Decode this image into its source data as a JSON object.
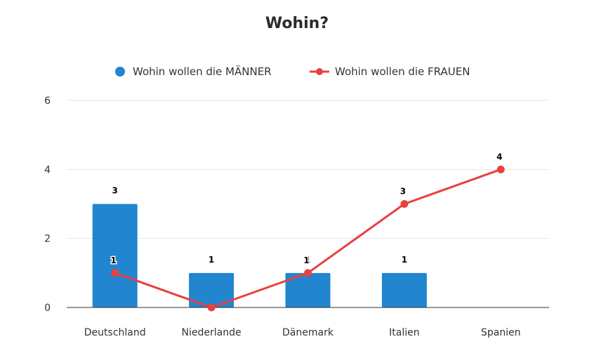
{
  "chart_data": {
    "type": "bar",
    "title": "Wohin?",
    "categories": [
      "Deutschland",
      "Niederlande",
      "Dänemark",
      "Italien",
      "Spanien"
    ],
    "series": [
      {
        "name": "Wohin wollen die MÄNNER",
        "type": "bar",
        "color": "#2185d0",
        "values": [
          3,
          1,
          1,
          1,
          0
        ]
      },
      {
        "name": "Wohin wollen die FRAUEN",
        "type": "line",
        "color": "#e8413e",
        "values": [
          1,
          0,
          1,
          3,
          4
        ]
      }
    ],
    "ylim": [
      0,
      6
    ],
    "yticks": [
      "0",
      "2",
      "4",
      "6"
    ],
    "grid": true,
    "legend": "top",
    "data_labels": {
      "bar": [
        "3",
        "1",
        "1",
        "1",
        ""
      ],
      "line": [
        "1",
        "",
        "1",
        "3",
        "4"
      ]
    }
  }
}
